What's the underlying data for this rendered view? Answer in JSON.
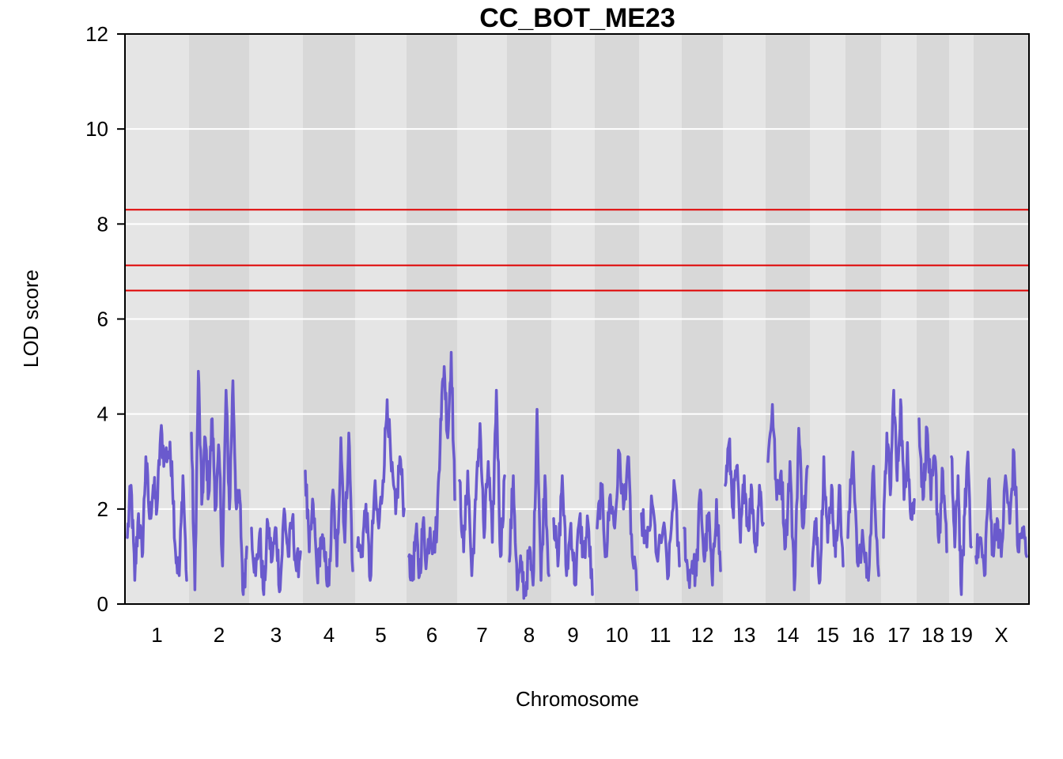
{
  "chart_data": {
    "type": "line",
    "title": "CC_BOT_ME23",
    "xlabel": "Chromosome",
    "ylabel": "LOD score",
    "ylim": [
      0,
      12
    ],
    "yticks": [
      0,
      2,
      4,
      6,
      8,
      10,
      12
    ],
    "grid": true,
    "legend": "none",
    "chromosomes": [
      "1",
      "2",
      "3",
      "4",
      "5",
      "6",
      "7",
      "8",
      "9",
      "10",
      "11",
      "12",
      "13",
      "14",
      "15",
      "16",
      "17",
      "18",
      "19",
      "X"
    ],
    "thresholds": [
      8.3,
      7.13,
      6.6
    ],
    "series": [
      {
        "color": "#6a5acd",
        "segments": [
          {
            "chr": "1",
            "peaks": [
              1.4,
              2.5,
              0.5,
              1.9,
              1.0,
              3.1,
              1.8,
              2.5,
              2.0,
              3.6,
              3.1,
              3.2,
              3.0,
              1.1,
              0.6,
              2.7,
              0.5
            ]
          },
          {
            "chr": "2",
            "peaks": [
              3.6,
              0.3,
              4.9,
              2.1,
              3.5,
              2.3,
              3.9,
              2.0,
              3.2,
              0.8,
              4.5,
              2.0,
              4.7,
              2.0,
              2.2,
              0.2,
              1.2
            ]
          },
          {
            "chr": "3",
            "peaks": [
              1.6,
              0.6,
              1.5,
              0.2,
              1.7,
              0.9,
              1.6,
              0.3,
              2.0,
              1.0,
              1.8,
              0.7,
              1.1
            ]
          },
          {
            "chr": "4",
            "peaks": [
              2.8,
              1.1,
              2.1,
              0.6,
              1.4,
              0.9,
              0.4,
              2.4,
              0.8,
              3.5,
              1.3,
              3.6,
              0.7
            ]
          },
          {
            "chr": "5",
            "peaks": [
              1.2,
              1.1,
              2.1,
              0.5,
              2.4,
              1.6,
              2.6,
              4.3,
              2.8,
              1.9,
              3.1,
              2.0
            ]
          },
          {
            "chr": "6",
            "peaks": [
              1.0,
              0.5,
              1.5,
              0.6,
              1.7,
              0.9,
              1.6,
              1.2,
              1.7,
              3.9,
              5.0,
              3.5,
              5.3,
              2.2
            ]
          },
          {
            "chr": "7",
            "peaks": [
              2.6,
              1.1,
              2.8,
              0.6,
              2.2,
              3.8,
              1.4,
              3.0,
              1.3,
              4.5,
              1.0,
              2.7
            ]
          },
          {
            "chr": "8",
            "peaks": [
              0.9,
              2.7,
              0.3,
              0.8,
              0.2,
              1.1,
              0.4,
              4.1,
              0.5,
              2.7,
              0.6
            ]
          },
          {
            "chr": "9",
            "peaks": [
              1.8,
              0.8,
              2.7,
              0.6,
              1.7,
              0.4,
              1.8,
              1.0,
              1.7,
              0.2
            ]
          },
          {
            "chr": "10",
            "peaks": [
              1.6,
              2.4,
              1.0,
              2.3,
              1.6,
              3.2,
              2.0,
              3.1,
              1.0,
              0.3
            ]
          },
          {
            "chr": "11",
            "peaks": [
              1.9,
              1.2,
              2.1,
              0.9,
              1.6,
              0.6,
              2.6,
              0.8
            ]
          },
          {
            "chr": "12",
            "peaks": [
              1.6,
              0.5,
              0.9,
              0.6,
              2.4,
              0.9,
              1.9,
              0.4,
              2.2,
              0.7
            ]
          },
          {
            "chr": "13",
            "peaks": [
              2.5,
              3.4,
              2.0,
              2.9,
              1.3,
              2.7,
              1.6,
              2.4,
              1.1,
              2.5,
              1.7
            ]
          },
          {
            "chr": "14",
            "peaks": [
              3.0,
              4.2,
              2.2,
              2.8,
              1.2,
              3.0,
              0.3,
              3.7,
              1.6,
              2.9
            ]
          },
          {
            "chr": "15",
            "peaks": [
              0.8,
              1.8,
              0.5,
              3.1,
              1.3,
              2.5,
              1.0,
              2.5,
              0.8
            ]
          },
          {
            "chr": "16",
            "peaks": [
              1.4,
              3.2,
              0.8,
              1.3,
              0.5,
              2.9,
              0.6
            ]
          },
          {
            "chr": "17",
            "peaks": [
              1.4,
              3.6,
              2.3,
              4.5,
              2.6,
              4.3,
              2.2,
              3.4,
              1.8,
              2.2
            ]
          },
          {
            "chr": "18",
            "peaks": [
              3.9,
              2.2,
              3.7,
              2.2,
              3.1,
              1.3,
              2.8,
              1.1
            ]
          },
          {
            "chr": "19",
            "peaks": [
              3.1,
              1.2,
              2.7,
              0.2,
              1.9,
              3.2,
              1.2
            ]
          },
          {
            "chr": "X",
            "peaks": [
              1.0,
              1.4,
              0.6,
              2.6,
              1.1,
              1.8,
              1.0,
              2.7,
              1.7,
              3.2,
              1.1,
              1.6,
              1.0
            ]
          }
        ]
      }
    ]
  }
}
